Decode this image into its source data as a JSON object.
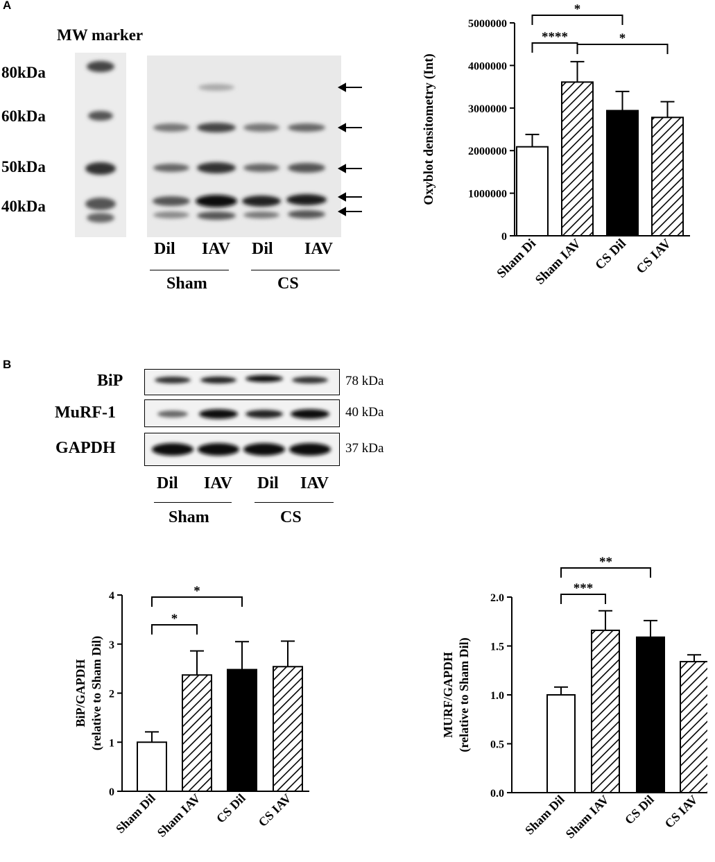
{
  "panels": {
    "a": "A",
    "b": "B"
  },
  "panel_a": {
    "marker_title": "MW marker",
    "markers": [
      "80kDa",
      "60kDa",
      "50kDa",
      "40kDa"
    ],
    "lane_labels": [
      "Dil",
      "IAV",
      "Dil",
      "IAV"
    ],
    "group_labels": [
      "Sham",
      "CS"
    ]
  },
  "panel_b": {
    "blot_rows": [
      {
        "name": "BiP",
        "size": "78 kDa"
      },
      {
        "name": "MuRF-1",
        "size": "40 kDa"
      },
      {
        "name": "GAPDH",
        "size": "37 kDa"
      }
    ],
    "lane_labels": [
      "Dil",
      "IAV",
      "Dil",
      "IAV"
    ],
    "group_labels": [
      "Sham",
      "CS"
    ]
  },
  "colors": {
    "bar_open": "#ffffff",
    "bar_solid": "#000000",
    "hatch": "#000000"
  },
  "chart_data": [
    {
      "type": "bar",
      "categories": [
        "Sham Di",
        "Sham IAV",
        "CS Dil",
        "CS IAV"
      ],
      "values": [
        2090000,
        3610000,
        2940000,
        2780000
      ],
      "errors": [
        290000,
        480000,
        450000,
        370000
      ],
      "fills": [
        "open",
        "hatched",
        "solid",
        "hatched"
      ],
      "ylabel": "Oxyblot densitometry (Int)",
      "ylim": [
        0,
        5000000
      ],
      "yticks": [
        "0",
        "1000000",
        "2000000",
        "3000000",
        "4000000",
        "5000000"
      ],
      "tick_values": [
        0,
        1000000,
        2000000,
        3000000,
        4000000,
        5000000
      ],
      "significance": [
        {
          "from": 0,
          "to": 2,
          "label": "*"
        },
        {
          "from": 0,
          "to": 1,
          "label": "****"
        },
        {
          "from": 1,
          "to": 3,
          "label": "*"
        }
      ]
    },
    {
      "type": "bar",
      "categories": [
        "Sham Dil",
        "Sham IAV",
        "CS Dil",
        "CS IAV"
      ],
      "values": [
        1.0,
        2.37,
        2.48,
        2.54
      ],
      "errors": [
        0.21,
        0.49,
        0.57,
        0.52
      ],
      "fills": [
        "open",
        "hatched",
        "solid",
        "hatched"
      ],
      "ylabel": "BiP/GAPDH",
      "ylabel2": "(relative to Sham Dil)",
      "ylim": [
        0,
        4
      ],
      "yticks": [
        "0",
        "1",
        "2",
        "3",
        "4"
      ],
      "tick_values": [
        0,
        1,
        2,
        3,
        4
      ],
      "significance": [
        {
          "from": 0,
          "to": 2,
          "label": "*"
        },
        {
          "from": 0,
          "to": 1,
          "label": "*"
        }
      ]
    },
    {
      "type": "bar",
      "categories": [
        "Sham Dil",
        "Sham IAV",
        "CS Dil",
        "CS IAV"
      ],
      "values": [
        1.0,
        1.66,
        1.59,
        1.34
      ],
      "errors": [
        0.08,
        0.2,
        0.17,
        0.07
      ],
      "fills": [
        "open",
        "hatched",
        "solid",
        "hatched"
      ],
      "ylabel": "MURF/GAPDH",
      "ylabel2": "(relative to Sham Dil)",
      "ylim": [
        0,
        2.0
      ],
      "yticks": [
        "0.0",
        "0.5",
        "1.0",
        "1.5",
        "2.0"
      ],
      "tick_values": [
        0,
        0.5,
        1.0,
        1.5,
        2.0
      ],
      "significance": [
        {
          "from": 0,
          "to": 2,
          "label": "**"
        },
        {
          "from": 0,
          "to": 1,
          "label": "***"
        }
      ]
    }
  ]
}
